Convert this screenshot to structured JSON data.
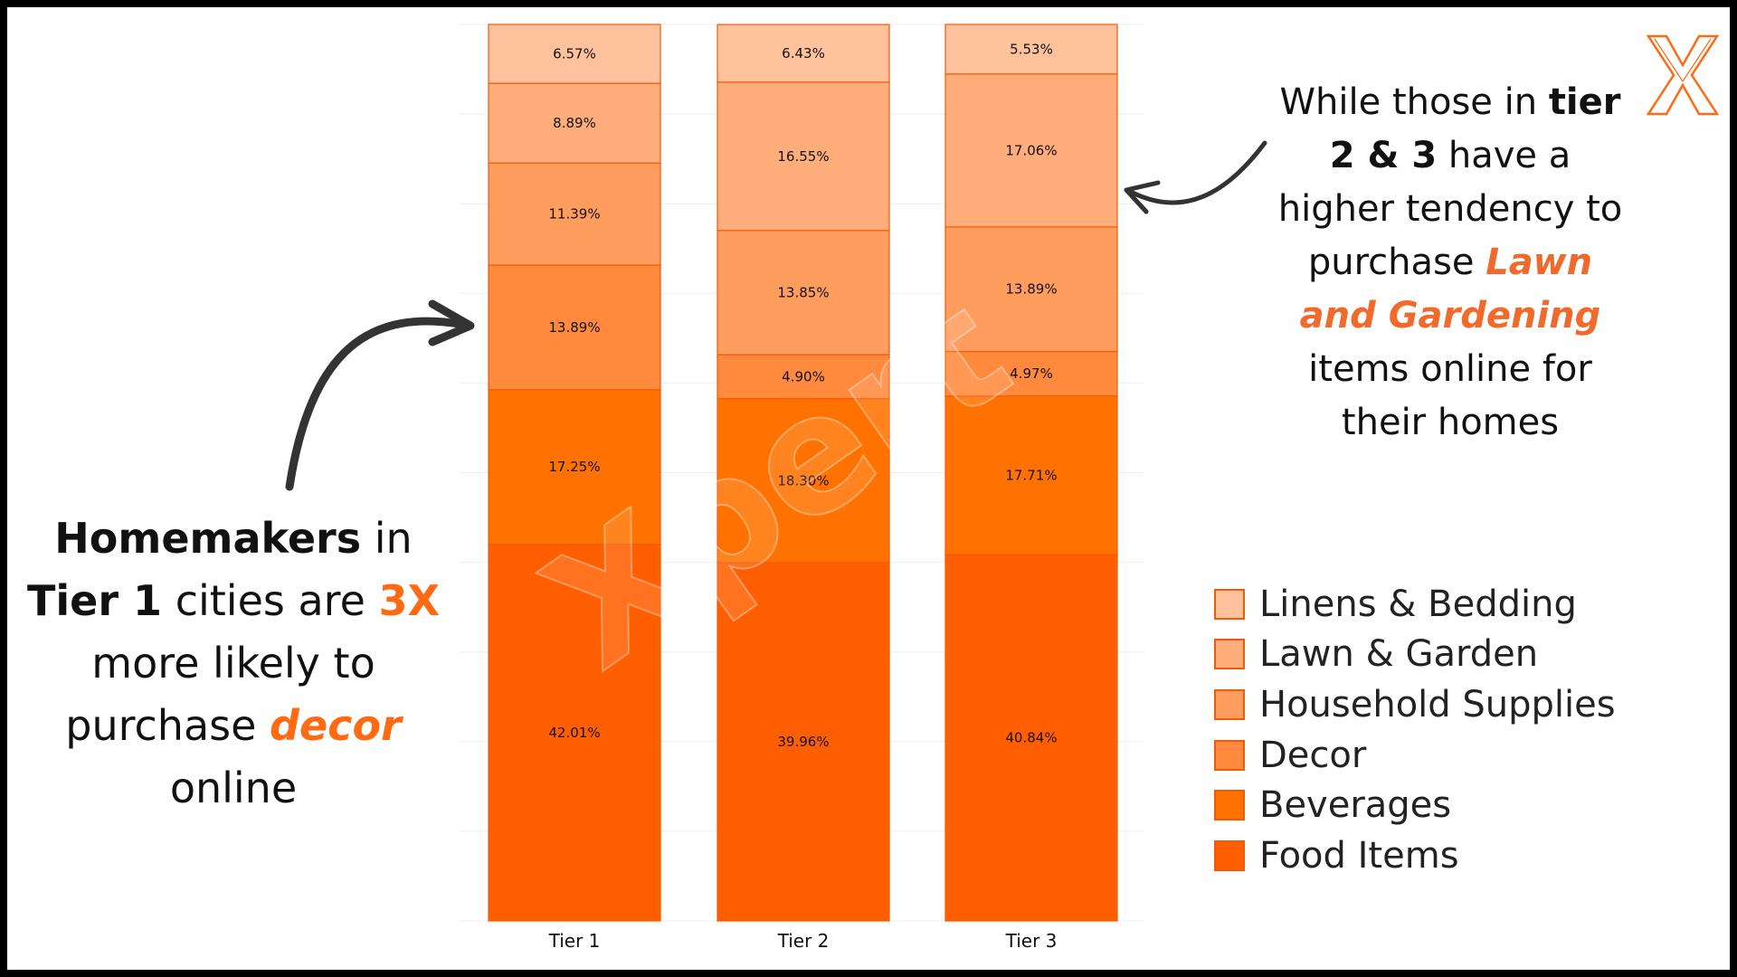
{
  "chart_data": {
    "type": "bar",
    "stacked": true,
    "categories": [
      "Tier 1",
      "Tier 2",
      "Tier 3"
    ],
    "series": [
      {
        "name": "Food Items",
        "values": [
          42.01,
          39.96,
          40.84
        ],
        "labels": [
          "42.01%",
          "39.96%",
          "40.84%"
        ],
        "color": "#ff5f00"
      },
      {
        "name": "Beverages",
        "values": [
          17.25,
          18.3,
          17.71
        ],
        "labels": [
          "17.25%",
          "18.30%",
          "17.71%"
        ],
        "color": "#ff7200"
      },
      {
        "name": "Decor",
        "values": [
          13.89,
          4.9,
          4.97
        ],
        "labels": [
          "13.89%",
          "4.90%",
          "4.97%"
        ],
        "color": "#ff8a3d"
      },
      {
        "name": "Household Supplies",
        "values": [
          11.39,
          13.85,
          13.89
        ],
        "labels": [
          "11.39%",
          "13.85%",
          "13.89%"
        ],
        "color": "#ff9d5e"
      },
      {
        "name": "Lawn & Garden",
        "values": [
          8.89,
          16.55,
          17.06
        ],
        "labels": [
          "8.89%",
          "16.55%",
          "17.06%"
        ],
        "color": "#ffad7b"
      },
      {
        "name": "Linens & Bedding",
        "values": [
          6.57,
          6.43,
          5.53
        ],
        "labels": [
          "6.57%",
          "6.43%",
          "5.53%"
        ],
        "color": "#ffc29d"
      }
    ],
    "ylim": [
      0,
      100
    ],
    "grid": true,
    "legend_position": "right"
  },
  "annotations": {
    "left": {
      "part1_bold": "Homemakers",
      "part2": " in ",
      "part3_bold": "Tier 1",
      "part4": " cities are ",
      "part5_accent": "3X",
      "part6": " more likely to purchase ",
      "part7_accent": "decor",
      "part8": " online"
    },
    "right": {
      "part1": "While those in ",
      "part2_bold": "tier 2 & 3",
      "part3": " have a higher tendency to purchase ",
      "part4_accent": "Lawn and Gardening",
      "part5": " items online for their homes"
    }
  },
  "watermark": "Xpert",
  "logo_icon": "x-logo-icon",
  "colors": {
    "accent": "#ff6a13",
    "border": "#f15a0a"
  }
}
